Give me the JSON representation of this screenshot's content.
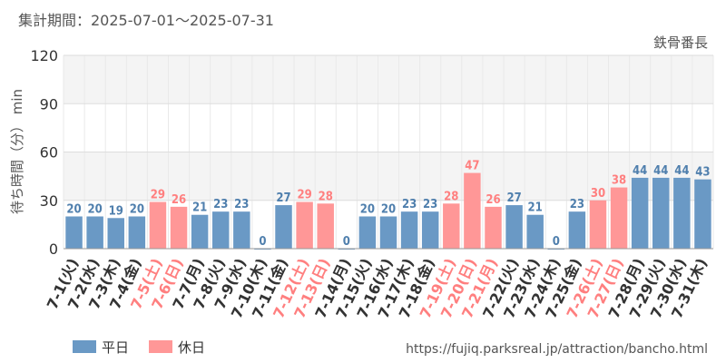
{
  "header": {
    "period": "集計期間：2025-07-01～2025-07-31",
    "attraction": "鉄骨番長"
  },
  "footer": {
    "url": "https://fujiq.parksreal.jp/attraction/bancho.html"
  },
  "colors": {
    "weekday": "#6a99c5",
    "holiday": "#ff9797",
    "weekday_label": "#4f7fad",
    "holiday_label": "#ff7f7f",
    "band": "#f4f4f4"
  },
  "chart_data": {
    "type": "bar",
    "ylabel": "待ち時間（分） min",
    "ylim": [
      0,
      120
    ],
    "yticks": [
      0,
      30,
      60,
      90,
      120
    ],
    "categories": [
      "7-1(火)",
      "7-2(水)",
      "7-3(木)",
      "7-4(金)",
      "7-5(土)",
      "7-6(日)",
      "7-7(月)",
      "7-8(火)",
      "7-9(水)",
      "7-10(木)",
      "7-11(金)",
      "7-12(土)",
      "7-13(日)",
      "7-14(月)",
      "7-15(火)",
      "7-16(水)",
      "7-17(木)",
      "7-18(金)",
      "7-19(土)",
      "7-20(日)",
      "7-21(月)",
      "7-22(火)",
      "7-23(水)",
      "7-24(木)",
      "7-25(金)",
      "7-26(土)",
      "7-27(日)",
      "7-28(月)",
      "7-29(火)",
      "7-30(水)",
      "7-31(木)"
    ],
    "values": [
      20,
      20,
      19,
      20,
      29,
      26,
      21,
      23,
      23,
      0,
      27,
      29,
      28,
      0,
      20,
      20,
      23,
      23,
      28,
      47,
      26,
      27,
      21,
      0,
      23,
      30,
      38,
      44,
      44,
      44,
      43
    ],
    "day_type": [
      "平日",
      "平日",
      "平日",
      "平日",
      "休日",
      "休日",
      "平日",
      "平日",
      "平日",
      "平日",
      "平日",
      "休日",
      "休日",
      "平日",
      "平日",
      "平日",
      "平日",
      "平日",
      "休日",
      "休日",
      "休日",
      "平日",
      "平日",
      "平日",
      "平日",
      "休日",
      "休日",
      "平日",
      "平日",
      "平日",
      "平日"
    ],
    "legend": [
      {
        "name": "平日",
        "color": "#6a99c5"
      },
      {
        "name": "休日",
        "color": "#ff9797"
      }
    ],
    "legend_position": "bottom-left",
    "grid": true
  }
}
